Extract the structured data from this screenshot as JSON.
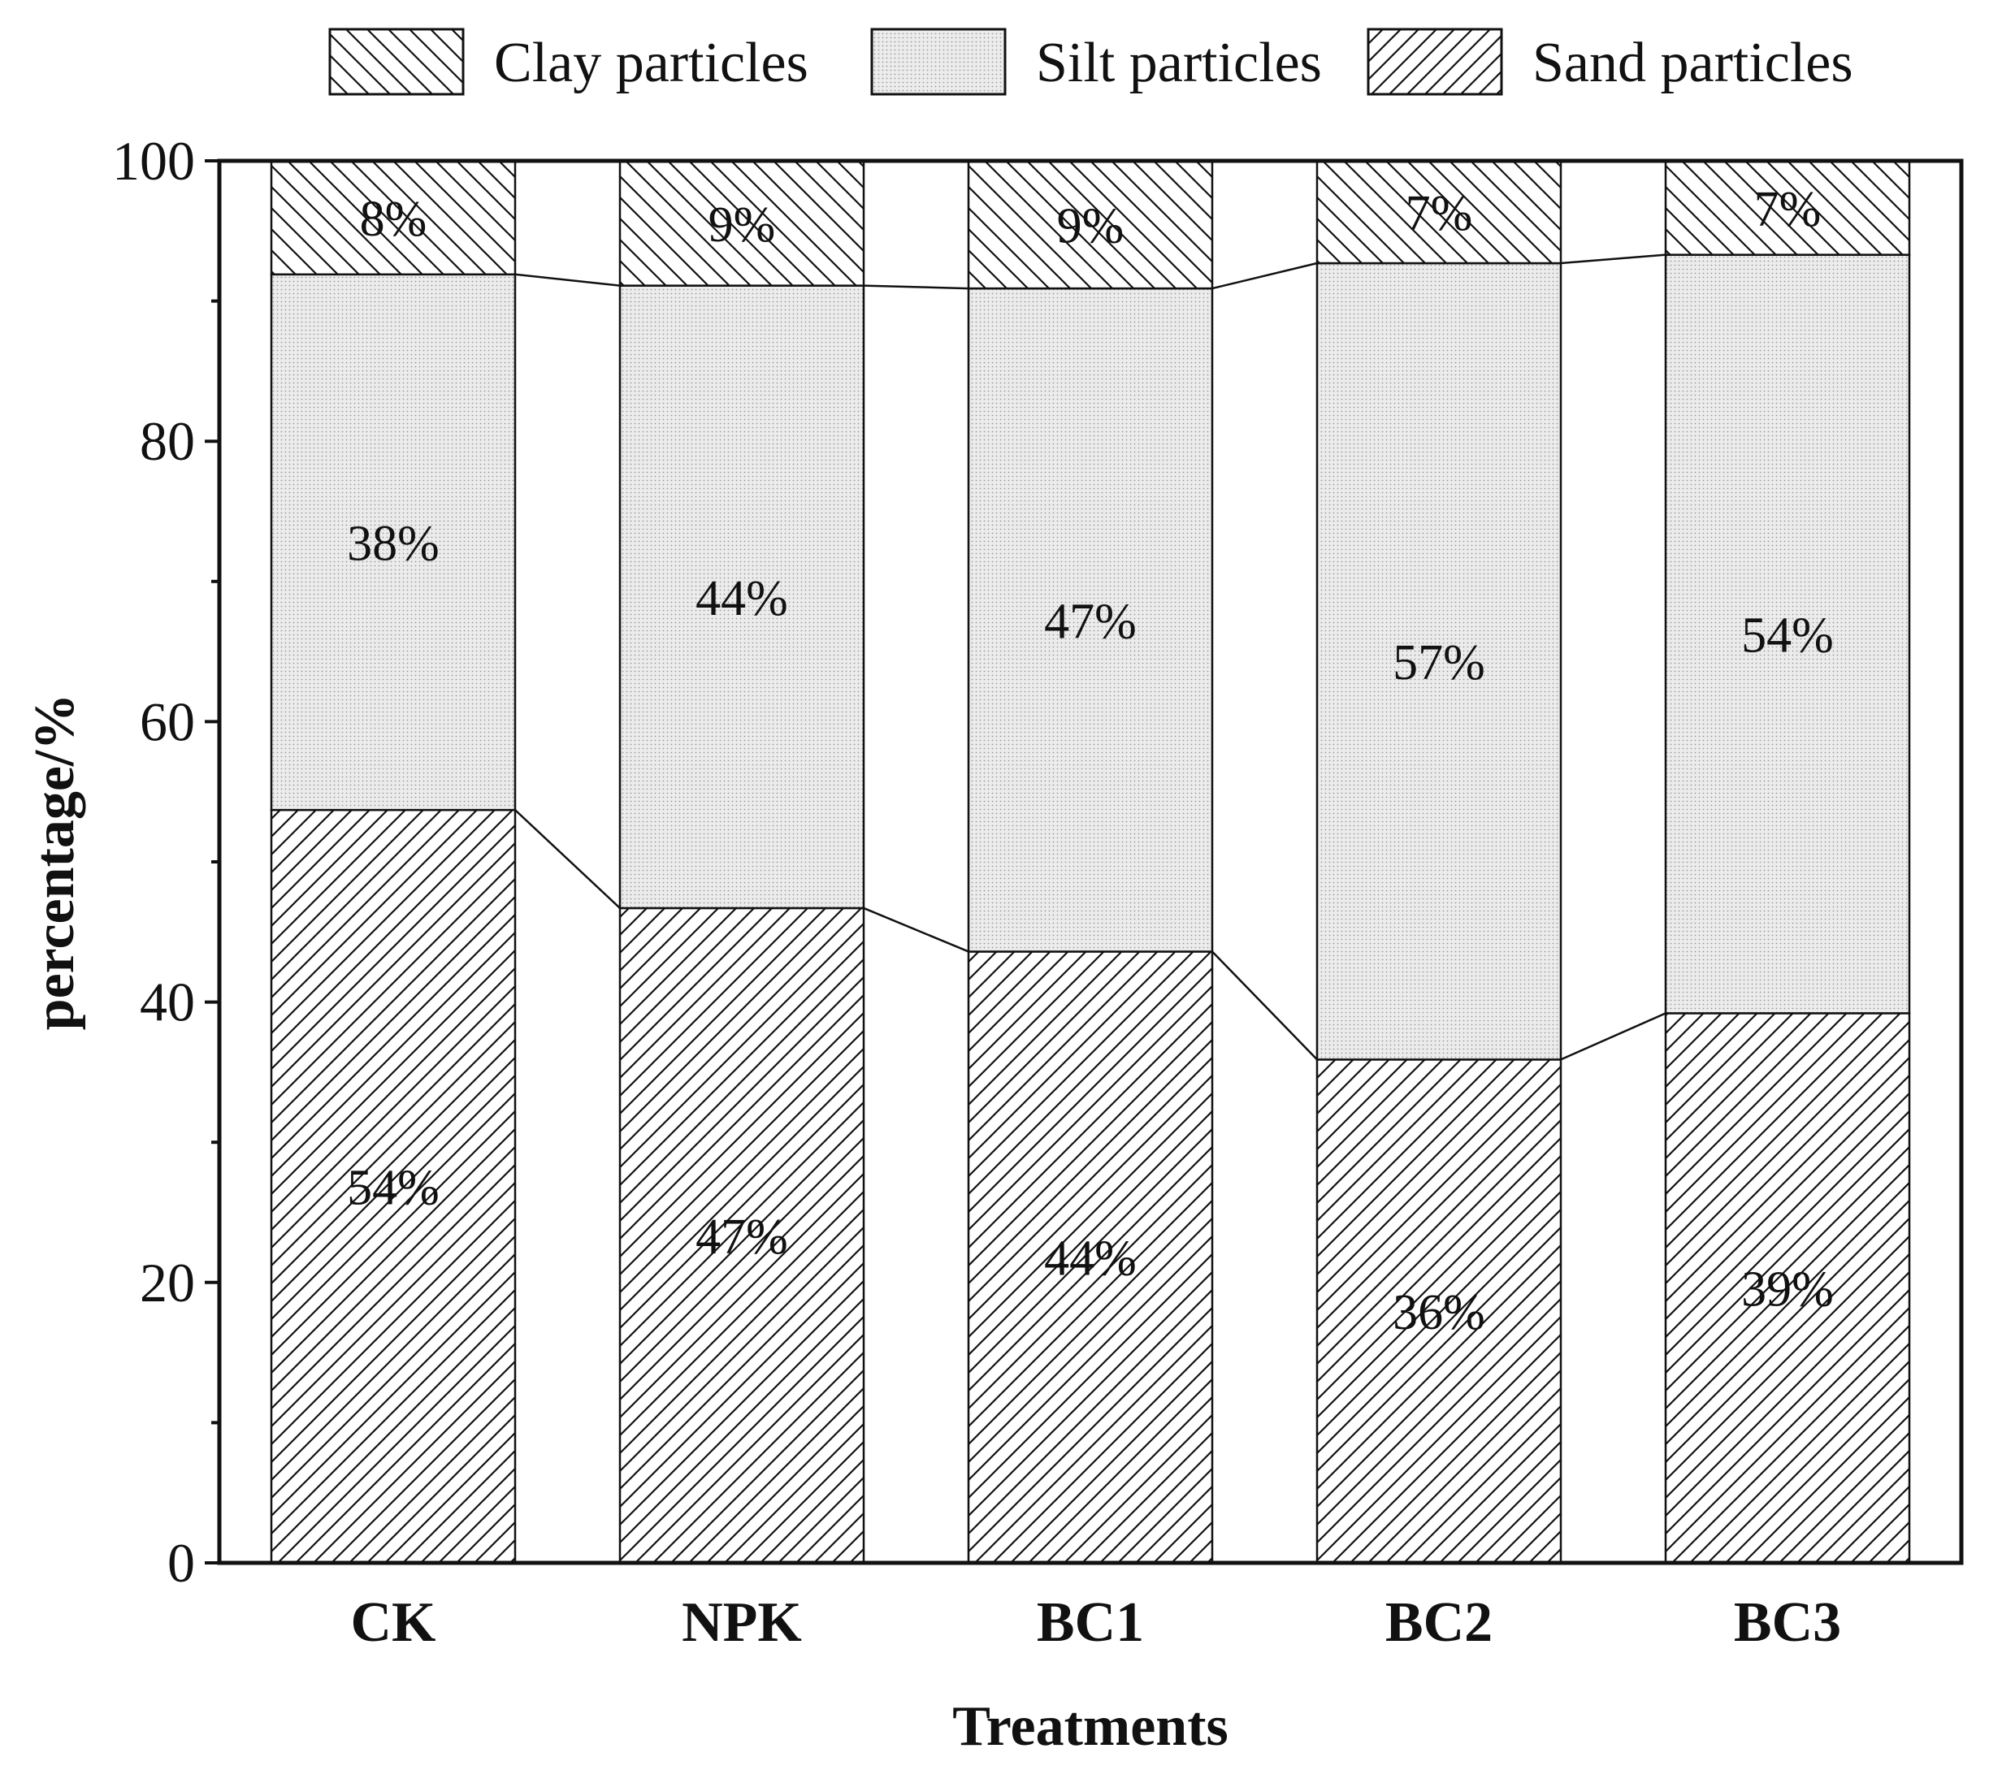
{
  "chart_data": {
    "type": "bar",
    "stacked": true,
    "xlabel": "Treatments",
    "ylabel": "percentage/%",
    "ylim": [
      0,
      100
    ],
    "yticks": [
      "0",
      "20",
      "40",
      "60",
      "80",
      "100"
    ],
    "categories": [
      "CK",
      "NPK",
      "BC1",
      "BC2",
      "BC3"
    ],
    "legend_position": "top",
    "series": [
      {
        "name": "Sand particles",
        "pattern": "forward-hatch",
        "values": [
          53.7,
          46.7,
          43.6,
          35.9,
          39.2
        ],
        "labels": [
          "54%",
          "47%",
          "44%",
          "36%",
          "39%"
        ]
      },
      {
        "name": "Silt particles",
        "pattern": "dotted",
        "values": [
          38.2,
          44.4,
          47.3,
          56.8,
          54.1
        ],
        "labels": [
          "38%",
          "44%",
          "47%",
          "57%",
          "54%"
        ]
      },
      {
        "name": "Clay particles",
        "pattern": "back-hatch",
        "values": [
          8.1,
          8.9,
          9.1,
          7.3,
          6.7
        ],
        "labels": [
          "8%",
          "9%",
          "9%",
          "7%",
          "7%"
        ]
      }
    ],
    "legend_order": [
      "Clay particles",
      "Silt particles",
      "Sand particles"
    ],
    "colors": {
      "stroke": "#111111",
      "fill": "#ffffff",
      "dot": "#9a9a9a",
      "silt_bg": "#ededed"
    }
  }
}
